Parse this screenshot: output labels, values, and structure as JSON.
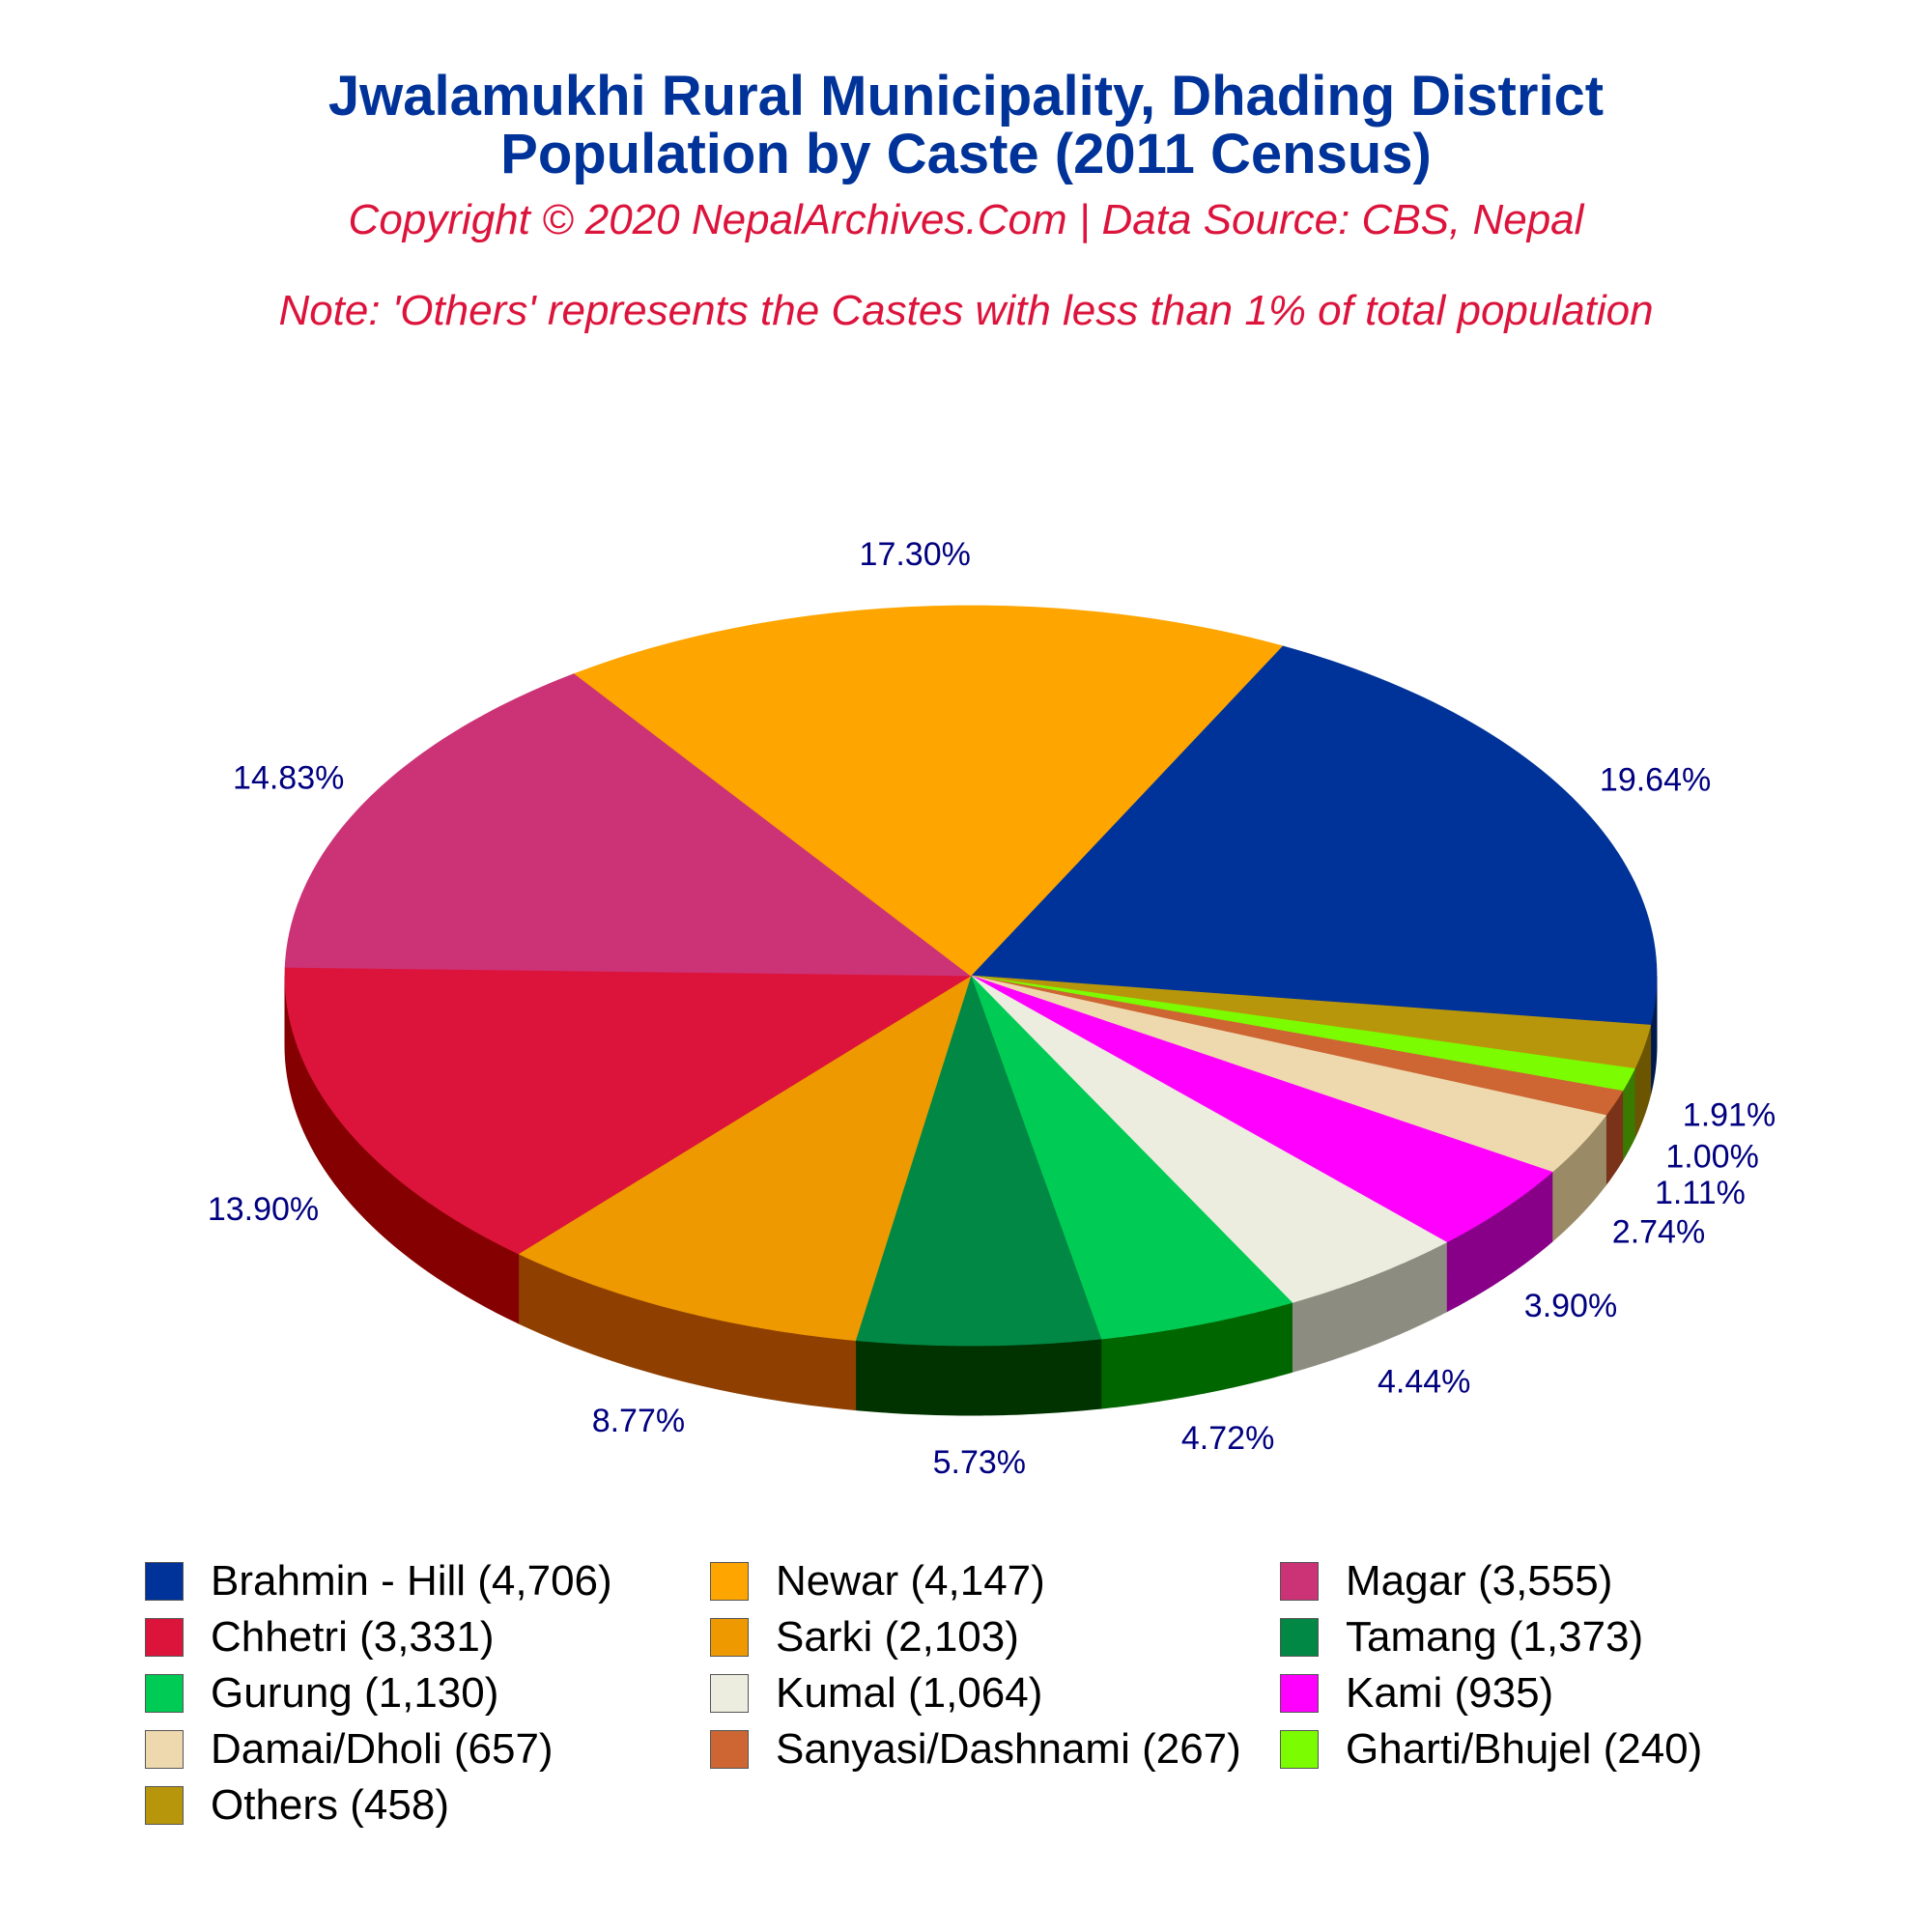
{
  "title_line1": "Jwalamukhi Rural Municipality, Dhading District",
  "title_line2": "Population by Caste (2011 Census)",
  "copyright": "Copyright © 2020 NepalArchives.Com | Data Source: CBS, Nepal",
  "note": "Note: 'Others' represents the Castes with less than 1% of total population",
  "chart_data": {
    "type": "pie",
    "title": "Jwalamukhi Rural Municipality, Dhading District Population by Caste (2011 Census)",
    "legend_position": "bottom",
    "slices": [
      {
        "name": "Brahmin - Hill",
        "value": 4706,
        "percent": "19.64%",
        "legend": "Brahmin - Hill (4,706)",
        "color": "#003399",
        "side_color": "#001a4d"
      },
      {
        "name": "Others",
        "value": 458,
        "percent": "1.91%",
        "legend": "Others (458)",
        "color": "#b8960c",
        "side_color": "#6b5500"
      },
      {
        "name": "Gharti/Bhujel",
        "value": 240,
        "percent": "1.00%",
        "legend": "Gharti/Bhujel (240)",
        "color": "#7cfc00",
        "side_color": "#3a7a00"
      },
      {
        "name": "Sanyasi/Dashnami",
        "value": 267,
        "percent": "1.11%",
        "legend": "Sanyasi/Dashnami (267)",
        "color": "#cd6633",
        "side_color": "#7a3318"
      },
      {
        "name": "Damai/Dholi",
        "value": 657,
        "percent": "2.74%",
        "legend": "Damai/Dholi (657)",
        "color": "#eed9ae",
        "side_color": "#9a8a66"
      },
      {
        "name": "Kami",
        "value": 935,
        "percent": "3.90%",
        "legend": "Kami (935)",
        "color": "#ff00ff",
        "side_color": "#880088"
      },
      {
        "name": "Kumal",
        "value": 1064,
        "percent": "4.44%",
        "legend": "Kumal (1,064)",
        "color": "#ececdf",
        "side_color": "#8c8c80"
      },
      {
        "name": "Gurung",
        "value": 1130,
        "percent": "4.72%",
        "legend": "Gurung (1,130)",
        "color": "#00cc55",
        "side_color": "#006600"
      },
      {
        "name": "Tamang",
        "value": 1373,
        "percent": "5.73%",
        "legend": "Tamang (1,373)",
        "color": "#008844",
        "side_color": "#003300"
      },
      {
        "name": "Sarki",
        "value": 2103,
        "percent": "8.77%",
        "legend": "Sarki (2,103)",
        "color": "#ee9900",
        "side_color": "#8f4000"
      },
      {
        "name": "Chhetri",
        "value": 3331,
        "percent": "13.90%",
        "legend": "Chhetri (3,331)",
        "color": "#dc143c",
        "side_color": "#850000"
      },
      {
        "name": "Magar",
        "value": 3555,
        "percent": "14.83%",
        "legend": "Magar (3,555)",
        "color": "#cc3377",
        "side_color": "#700022"
      },
      {
        "name": "Newar",
        "value": 4147,
        "percent": "17.30%",
        "legend": "Newar (4,147)",
        "color": "#ffa500",
        "side_color": "#995500"
      }
    ],
    "legend_order": [
      "Brahmin - Hill",
      "Newar",
      "Magar",
      "Chhetri",
      "Sarki",
      "Tamang",
      "Gurung",
      "Kumal",
      "Kami",
      "Damai/Dholi",
      "Sanyasi/Dashnami",
      "Gharti/Bhujel",
      "Others"
    ],
    "label_color": "#000080"
  }
}
